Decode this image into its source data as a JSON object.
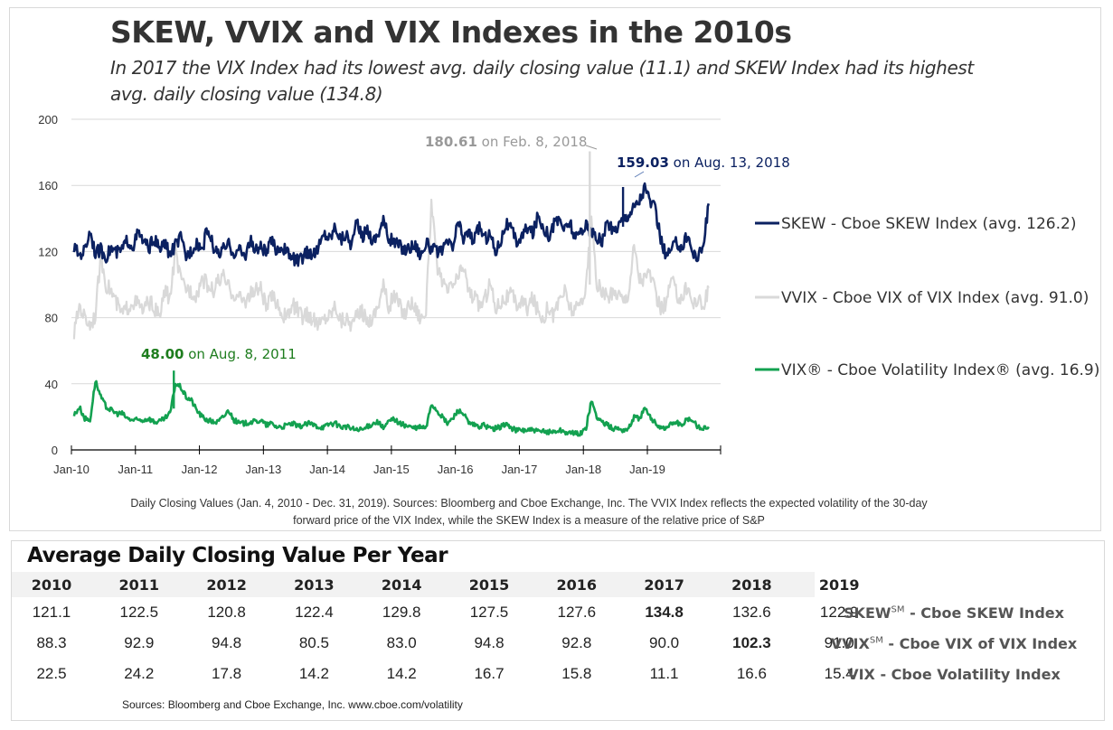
{
  "title": "SKEW, VVIX and VIX Indexes in the 2010s",
  "subtitle": "In 2017 the VIX Index had its lowest avg. daily closing value (11.1) and SKEW Index had its highest avg. daily closing value (134.8)",
  "footnote_line1": "Daily Closing Values (Jan. 4, 2010 - Dec. 31, 2019).  Sources: Bloomberg and Cboe Exchange, Inc.  The VVIX Index reflects the expected volatility of the 30-day",
  "footnote_line2": "forward price of the VIX Index, while the SKEW Index is a measure of the relative price of S&P",
  "chart_data": {
    "type": "line",
    "title": "SKEW, VVIX and VIX Indexes in the 2010s",
    "xlabel": "",
    "ylabel": "",
    "ylim": [
      0,
      200
    ],
    "yticks": [
      0,
      40,
      80,
      120,
      160,
      200
    ],
    "x_start": 2010.0,
    "x_end": 2020.0,
    "xtick_labels": [
      "Jan-10",
      "Jan-11",
      "Jan-12",
      "Jan-13",
      "Jan-14",
      "Jan-15",
      "Jan-16",
      "Jan-17",
      "Jan-18",
      "Jan-19"
    ],
    "xtick_years": [
      2010,
      2011,
      2012,
      2013,
      2014,
      2015,
      2016,
      2017,
      2018,
      2019
    ],
    "grid": "horizontal",
    "legend_position": "right",
    "sampling": "approximate monthly values read from chart (Jan 2010 - Dec 2019)",
    "series": [
      {
        "name": "SKEW - Cboe SKEW Index (avg. 126.2)",
        "key": "skew",
        "color": "#0b2161",
        "values": [
          122,
          118,
          121,
          133,
          119,
          121,
          117,
          122,
          119,
          121,
          127,
          123,
          131,
          126,
          122,
          128,
          121,
          125,
          118,
          124,
          128,
          117,
          121,
          126,
          121,
          134,
          124,
          118,
          121,
          124,
          119,
          121,
          117,
          127,
          120,
          123,
          119,
          126,
          121,
          123,
          119,
          116,
          114,
          117,
          120,
          118,
          124,
          131,
          128,
          136,
          127,
          131,
          124,
          137,
          129,
          134,
          126,
          131,
          139,
          128,
          126,
          124,
          121,
          123,
          124,
          118,
          125,
          122,
          120,
          119,
          126,
          122,
          138,
          128,
          132,
          126,
          136,
          127,
          131,
          120,
          127,
          137,
          133,
          126,
          129,
          135,
          131,
          142,
          135,
          130,
          136,
          140,
          133,
          138,
          127,
          133,
          136,
          131,
          128,
          126,
          138,
          132,
          136,
          140,
          143,
          147,
          151,
          159,
          151,
          145,
          128,
          117,
          121,
          126,
          122,
          131,
          119,
          117,
          124,
          149
        ]
      },
      {
        "name": "VVIX - Cboe VIX of VIX Index (avg. 91.0)",
        "key": "vvix",
        "color": "#d9d9d9",
        "values": [
          70,
          88,
          80,
          76,
          82,
          118,
          100,
          96,
          88,
          82,
          86,
          90,
          88,
          84,
          90,
          86,
          80,
          96,
          92,
          120,
          102,
          98,
          96,
          94,
          104,
          100,
          96,
          102,
          104,
          98,
          94,
          92,
          90,
          94,
          96,
          98,
          86,
          92,
          90,
          82,
          80,
          88,
          84,
          80,
          82,
          78,
          76,
          80,
          82,
          88,
          78,
          80,
          76,
          80,
          84,
          78,
          80,
          88,
          100,
          86,
          94,
          88,
          82,
          90,
          86,
          80,
          84,
          150,
          112,
          100,
          96,
          100,
          104,
          112,
          96,
          92,
          88,
          90,
          102,
          86,
          90,
          92,
          94,
          88,
          90,
          86,
          92,
          84,
          80,
          88,
          80,
          92,
          96,
          86,
          84,
          90,
          98,
          140,
          100,
          96,
          92,
          94,
          96,
          90,
          96,
          124,
          104,
          104,
          108,
          94,
          86,
          88,
          104,
          94,
          92,
          100,
          88,
          92,
          86,
          98
        ]
      },
      {
        "name": "VIX® - Cboe Volatility Index® (avg. 16.9)",
        "key": "vix",
        "color": "#13a150",
        "values": [
          21,
          26,
          19,
          18,
          42,
          32,
          26,
          24,
          22,
          22,
          19,
          18,
          18,
          18,
          19,
          17,
          17,
          19,
          22,
          40,
          38,
          32,
          30,
          24,
          20,
          18,
          17,
          17,
          20,
          24,
          18,
          16,
          16,
          17,
          17,
          18,
          15,
          16,
          14,
          14,
          15,
          16,
          14,
          15,
          16,
          15,
          14,
          14,
          16,
          16,
          14,
          14,
          13,
          12,
          12,
          14,
          16,
          17,
          13,
          17,
          19,
          16,
          15,
          14,
          13,
          14,
          13,
          28,
          24,
          20,
          16,
          19,
          24,
          22,
          16,
          15,
          14,
          15,
          13,
          13,
          14,
          16,
          13,
          12,
          12,
          12,
          12,
          11,
          11,
          11,
          11,
          12,
          11,
          10,
          10,
          10,
          13,
          30,
          20,
          17,
          15,
          13,
          13,
          12,
          13,
          20,
          19,
          25,
          20,
          16,
          14,
          13,
          16,
          17,
          14,
          19,
          18,
          14,
          13,
          14
        ]
      }
    ],
    "annotations": [
      {
        "key": "vvix",
        "value": "180.61",
        "text": " on Feb. 8, 2018",
        "color": "#999999",
        "x": 2018.1,
        "y": 180.61
      },
      {
        "key": "skew",
        "value": "159.03",
        "text": " on Aug. 13, 2018",
        "color": "#0b2161",
        "x": 2018.62,
        "y": 159.03
      },
      {
        "key": "vix",
        "value": "48.00",
        "text": " on Aug. 8, 2011",
        "color": "#1e7d1e",
        "x": 2011.6,
        "y": 48.0
      }
    ]
  },
  "table": {
    "title": "Average Daily Closing Value Per Year",
    "years": [
      "2010",
      "2011",
      "2012",
      "2013",
      "2014",
      "2015",
      "2016",
      "2017",
      "2018",
      "2019"
    ],
    "rows": [
      {
        "label_main": "SKEW",
        "label_sup": "SM",
        "label_rest": " - Cboe SKEW Index",
        "values": [
          "121.1",
          "122.5",
          "120.8",
          "122.4",
          "129.8",
          "127.5",
          "127.6",
          "134.8",
          "132.6",
          "122.9"
        ],
        "bold_index": 7
      },
      {
        "label_main": "VVIX",
        "label_sup": "SM",
        "label_rest": " - Cboe VIX of VIX Index",
        "values": [
          "88.3",
          "92.9",
          "94.8",
          "80.5",
          "83.0",
          "94.8",
          "92.8",
          "90.0",
          "102.3",
          "91.0"
        ],
        "bold_index": 8
      },
      {
        "label_main": "VIX",
        "label_sup": "",
        "label_rest": " - Cboe Volatility Index",
        "values": [
          "22.5",
          "24.2",
          "17.8",
          "14.2",
          "14.2",
          "16.7",
          "15.8",
          "11.1",
          "16.6",
          "15.4"
        ],
        "bold_index": -1
      }
    ],
    "sources": "Sources: Bloomberg and Cboe Exchange, Inc.   www.cboe.com/volatility"
  }
}
